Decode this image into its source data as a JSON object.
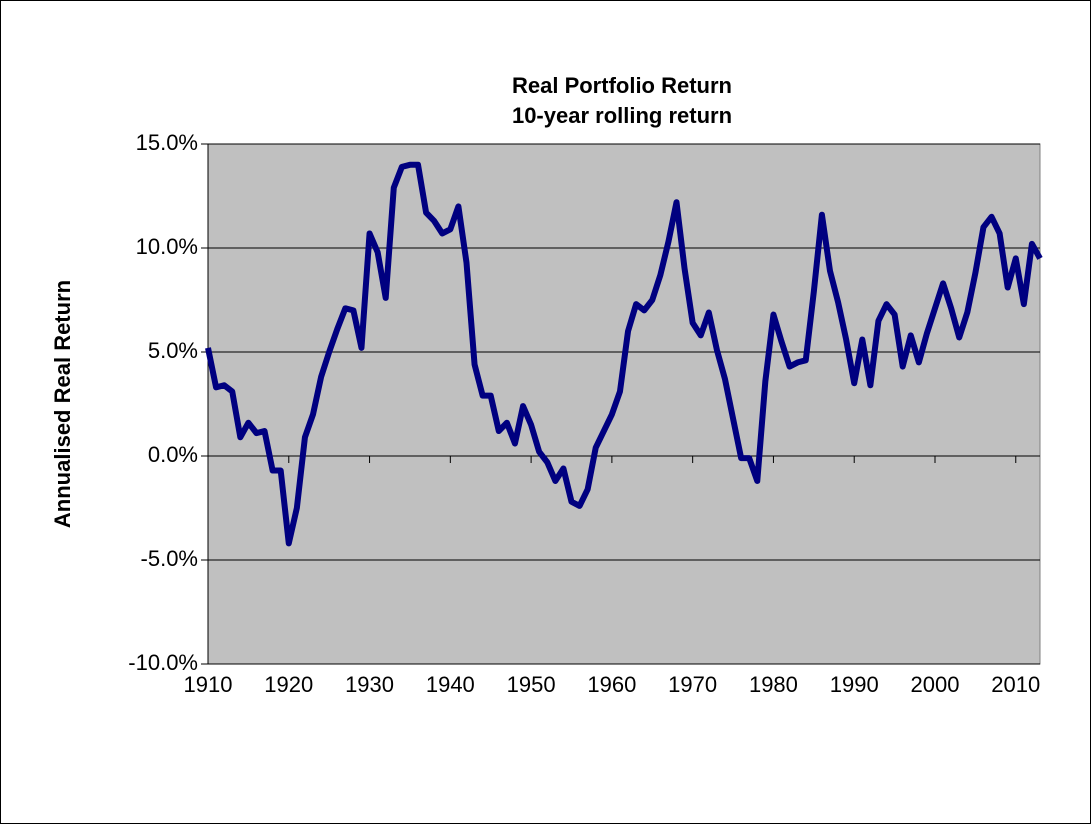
{
  "chart_data": {
    "type": "line",
    "title": "Real Portfolio Return",
    "subtitle": "10-year rolling return",
    "y_axis_label": "Annualised Real Return",
    "x": [
      1910,
      1911,
      1912,
      1913,
      1914,
      1915,
      1916,
      1917,
      1918,
      1919,
      1920,
      1921,
      1922,
      1923,
      1924,
      1925,
      1926,
      1927,
      1928,
      1929,
      1930,
      1931,
      1932,
      1933,
      1934,
      1935,
      1936,
      1937,
      1938,
      1939,
      1940,
      1941,
      1942,
      1943,
      1944,
      1945,
      1946,
      1947,
      1948,
      1949,
      1950,
      1951,
      1952,
      1953,
      1954,
      1955,
      1956,
      1957,
      1958,
      1959,
      1960,
      1961,
      1962,
      1963,
      1964,
      1965,
      1966,
      1967,
      1968,
      1969,
      1970,
      1971,
      1972,
      1973,
      1974,
      1975,
      1976,
      1977,
      1978,
      1979,
      1980,
      1981,
      1982,
      1983,
      1984,
      1985,
      1986,
      1987,
      1988,
      1989,
      1990,
      1991,
      1992,
      1993,
      1994,
      1995,
      1996,
      1997,
      1998,
      1999,
      2000,
      2001,
      2002,
      2003,
      2004,
      2005,
      2006,
      2007,
      2008,
      2009,
      2010,
      2011,
      2012,
      2013
    ],
    "series": [
      {
        "color": "#000080",
        "values": [
          5.2,
          3.3,
          3.4,
          3.1,
          0.9,
          1.6,
          1.1,
          1.2,
          -0.7,
          -0.7,
          -4.2,
          -2.5,
          0.9,
          2.0,
          3.8,
          5.0,
          6.1,
          7.1,
          7.0,
          5.2,
          10.7,
          9.8,
          7.6,
          12.9,
          13.9,
          14.0,
          14.0,
          11.7,
          11.3,
          10.7,
          10.9,
          12.0,
          9.3,
          4.4,
          2.9,
          2.9,
          1.2,
          1.6,
          0.6,
          2.4,
          1.5,
          0.2,
          -0.3,
          -1.2,
          -0.6,
          -2.2,
          -2.4,
          -1.6,
          0.4,
          1.2,
          2.0,
          3.1,
          6.0,
          7.3,
          7.0,
          7.5,
          8.7,
          10.3,
          12.2,
          9.0,
          6.4,
          5.8,
          6.9,
          5.1,
          3.7,
          1.8,
          -0.1,
          -0.1,
          -1.2,
          3.6,
          6.8,
          5.5,
          4.3,
          4.5,
          4.6,
          7.9,
          11.6,
          8.9,
          7.4,
          5.6,
          3.5,
          5.6,
          3.4,
          6.5,
          7.3,
          6.8,
          4.3,
          5.8,
          4.5,
          5.9,
          7.1,
          8.3,
          7.1,
          5.7,
          6.9,
          8.8,
          11.0,
          11.5,
          10.7,
          8.1,
          9.5,
          7.3,
          10.2,
          9.5
        ]
      }
    ],
    "xlim": [
      1910,
      2013
    ],
    "xticks": [
      1910,
      1920,
      1930,
      1940,
      1950,
      1960,
      1970,
      1980,
      1990,
      2000,
      2010
    ],
    "ylim": [
      -10,
      15
    ],
    "yticks": [
      {
        "value": -10,
        "label": "-10.0%"
      },
      {
        "value": -5,
        "label": "-5.0%"
      },
      {
        "value": 0,
        "label": "0.0%"
      },
      {
        "value": 5,
        "label": "5.0%"
      },
      {
        "value": 10,
        "label": "10.0%"
      },
      {
        "value": 15,
        "label": "15.0%"
      }
    ],
    "grid": true,
    "plot_background": "#c0c0c0"
  }
}
